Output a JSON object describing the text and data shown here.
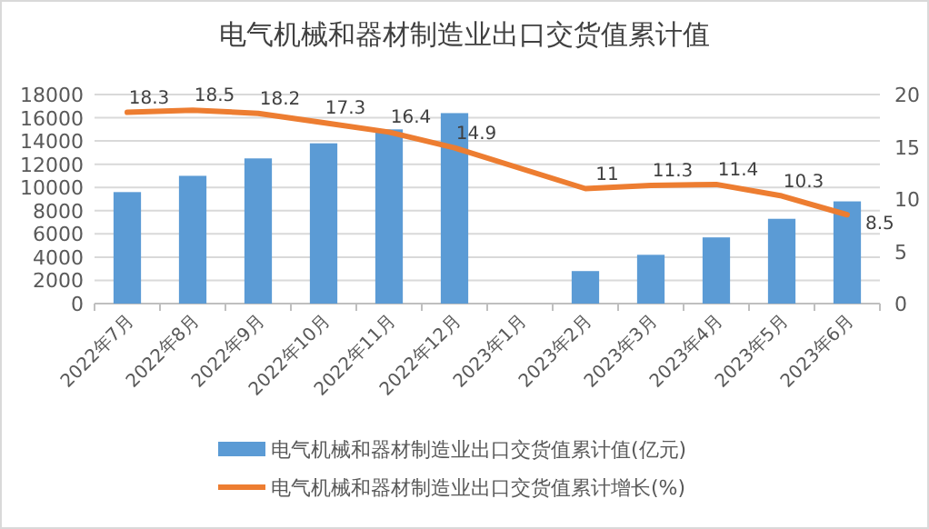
{
  "chart_data": {
    "type": "bar",
    "title": "电气机械和器材制造业出口交货值累计值",
    "categories": [
      "2022年7月",
      "2022年8月",
      "2022年9月",
      "2022年10月",
      "2022年11月",
      "2022年12月",
      "2023年1月",
      "2023年2月",
      "2023年3月",
      "2023年4月",
      "2023年5月",
      "2023年6月"
    ],
    "series": [
      {
        "name": "电气机械和器材制造业出口交货值累计值(亿元)",
        "color": "#5b9bd5",
        "values": [
          9600,
          11000,
          12500,
          13800,
          15000,
          16400,
          null,
          2800,
          4200,
          5700,
          7300,
          8800
        ]
      },
      {
        "name": "电气机械和器材制造业出口交货值累计增长(%)",
        "type": "line",
        "axis": "y2",
        "color": "#ed7d31",
        "values": [
          18.3,
          18.5,
          18.2,
          17.3,
          16.4,
          14.9,
          null,
          11,
          11.3,
          11.4,
          10.3,
          8.5
        ],
        "value_labels": [
          "18.3",
          "18.5",
          "18.2",
          "17.3",
          "16.4",
          "14.9",
          null,
          "11",
          "11.3",
          "11.4",
          "10.3",
          "8.5"
        ]
      }
    ],
    "ylim": [
      0,
      18000
    ],
    "yticks": [
      0,
      2000,
      4000,
      6000,
      8000,
      10000,
      12000,
      14000,
      16000,
      18000
    ],
    "y2lim": [
      0,
      20
    ],
    "y2ticks": [
      0,
      5,
      10,
      15,
      20
    ],
    "grid": "y",
    "legend": "bottom"
  }
}
